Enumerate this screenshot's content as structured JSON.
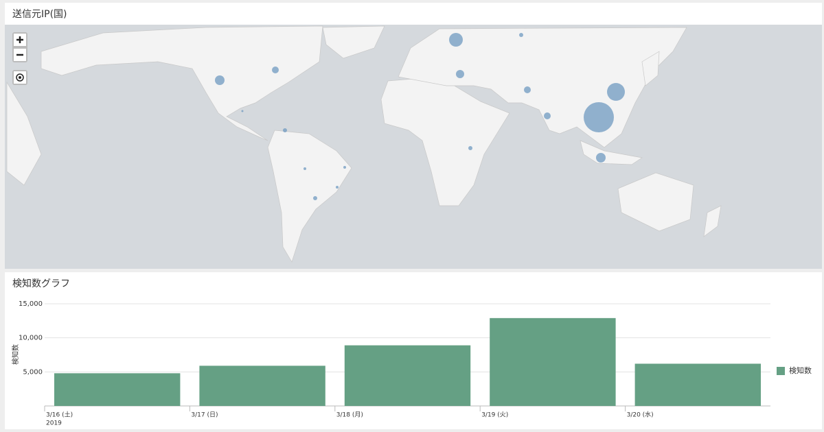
{
  "map_panel": {
    "title": "送信元IP(国)"
  },
  "chart_data": {
    "type": "bar",
    "title": "検知数グラフ",
    "y_label": "検知数",
    "categories": [
      "3/16 (土)",
      "3/17 (日)",
      "3/18 (月)",
      "3/19 (火)",
      "3/20 (水)"
    ],
    "x_sublabel": "2019",
    "series": [
      {
        "name": "検知数",
        "color": "#65a084",
        "values": [
          4800,
          5900,
          8900,
          12900,
          6200
        ]
      }
    ],
    "ylim": [
      0,
      15000
    ],
    "yticks": [
      {
        "value": 5000,
        "label": "5,000"
      },
      {
        "value": 10000,
        "label": "10,000"
      },
      {
        "value": 15000,
        "label": "15,000"
      }
    ],
    "grid": true,
    "legend": "right"
  }
}
